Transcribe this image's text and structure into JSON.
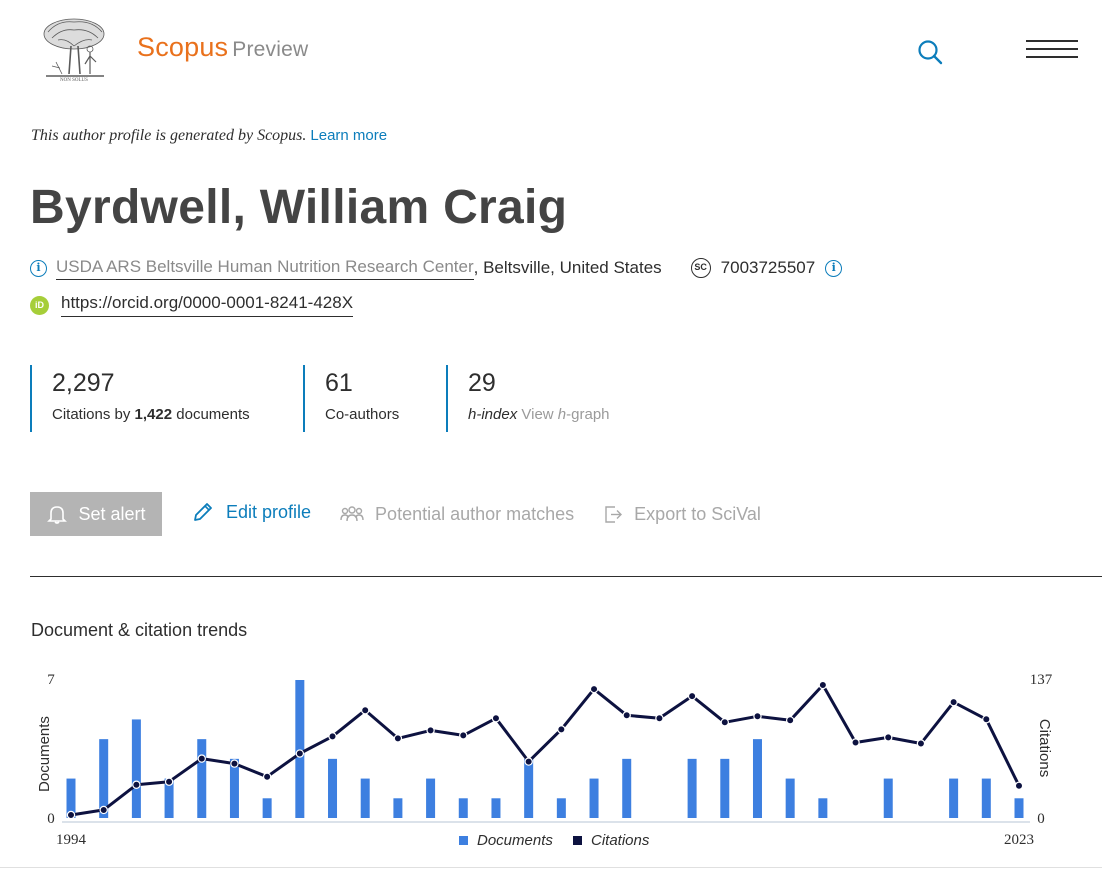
{
  "header": {
    "brand": "Scopus",
    "brand_suffix": "Preview",
    "search_icon": "search-icon",
    "menu_icon": "hamburger-menu-icon"
  },
  "notice": {
    "text": "This author profile is generated by Scopus.",
    "link": "Learn more"
  },
  "author": {
    "name": "Byrdwell, William Craig",
    "affiliation": "USDA ARS Beltsville Human Nutrition Research Center",
    "location": ", Beltsville, United States",
    "scopus_id": "7003725507",
    "sc_badge": "SC",
    "orcid_badge": "iD",
    "orcid": "https://orcid.org/0000-0001-8241-428X"
  },
  "metrics": {
    "citations": "2,297",
    "citations_label_pre": "Citations by ",
    "citations_docs": "1,422",
    "citations_label_post": " documents",
    "coauthors": "61",
    "coauthors_label": "Co-authors",
    "hindex": "29",
    "hindex_label": "h-index",
    "hgraph_pre": "View ",
    "hgraph_h": "h",
    "hgraph_post": "-graph"
  },
  "actions": {
    "set_alert": "Set alert",
    "edit_profile": "Edit profile",
    "author_matches": "Potential author matches",
    "export": "Export to SciVal"
  },
  "colors": {
    "brand": "#e9711c",
    "link": "#0c7dbb",
    "documents_bar": "#3d7fe0",
    "citations_line": "#0d1240"
  },
  "chart_title": "Document & citation trends",
  "chart_data": {
    "type": "bar",
    "title": "Document & citation trends",
    "x": [
      1994,
      1995,
      1996,
      1997,
      1998,
      1999,
      2000,
      2001,
      2002,
      2003,
      2004,
      2005,
      2006,
      2007,
      2008,
      2009,
      2010,
      2011,
      2012,
      2013,
      2014,
      2015,
      2016,
      2017,
      2018,
      2019,
      2020,
      2021,
      2022,
      2023
    ],
    "x_tick_labels": [
      "1994",
      "2023"
    ],
    "left_axis": {
      "label": "Documents",
      "ylim": [
        0,
        7
      ],
      "ticks": [
        "0",
        "7"
      ]
    },
    "right_axis": {
      "label": "Citations",
      "ylim": [
        0,
        137
      ],
      "ticks": [
        "0",
        "137"
      ]
    },
    "series": [
      {
        "name": "Documents",
        "type": "bar",
        "axis": "left",
        "values": [
          2,
          4,
          5,
          2,
          4,
          3,
          1,
          7,
          3,
          2,
          1,
          2,
          1,
          1,
          3,
          1,
          2,
          3,
          0,
          3,
          3,
          4,
          2,
          1,
          0,
          2,
          0,
          2,
          2,
          1
        ]
      },
      {
        "name": "Citations",
        "type": "line",
        "axis": "right",
        "values": [
          3,
          8,
          33,
          36,
          59,
          54,
          41,
          64,
          81,
          107,
          79,
          87,
          82,
          99,
          56,
          88,
          128,
          102,
          99,
          121,
          95,
          101,
          97,
          132,
          75,
          80,
          74,
          115,
          98,
          32
        ]
      }
    ],
    "legend": "bottom-center"
  }
}
